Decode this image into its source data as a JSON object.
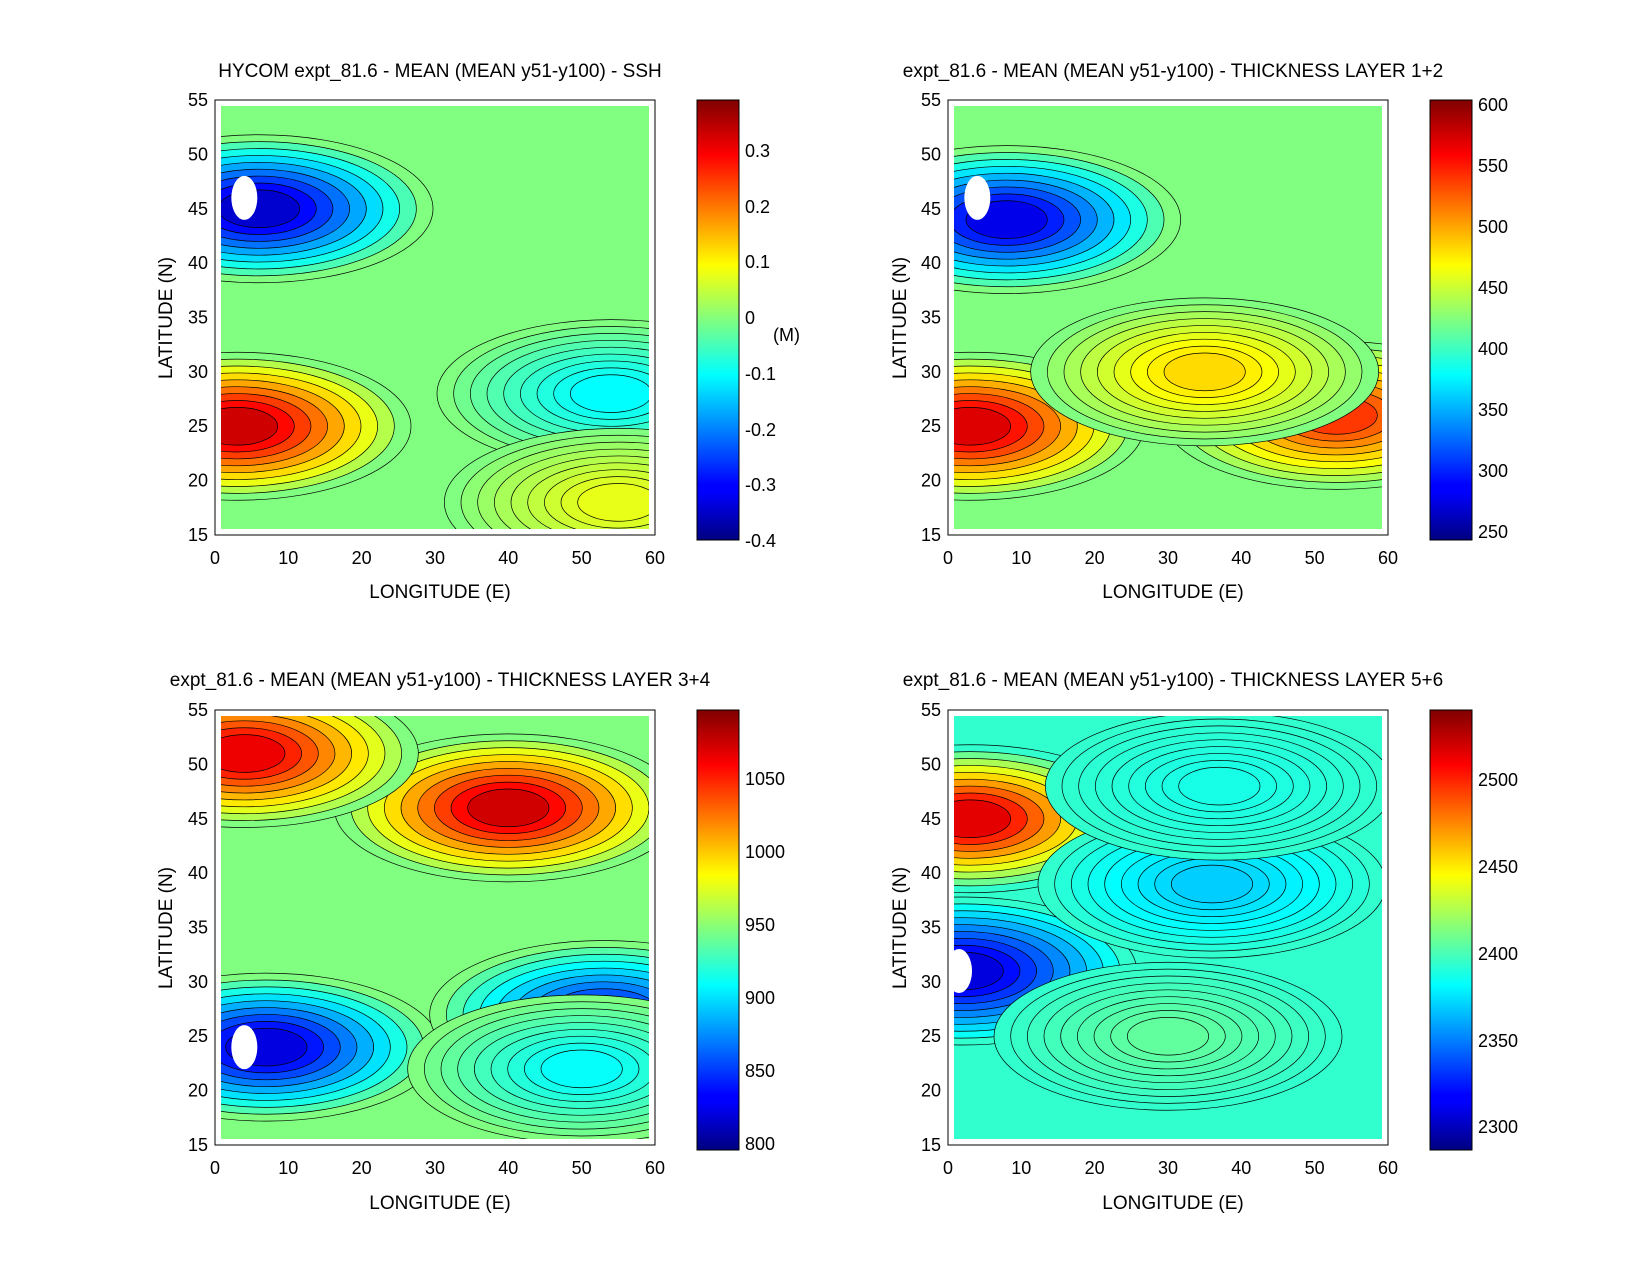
{
  "figure": {
    "panels": [
      {
        "title": "HYCOM expt_81.6 - MEAN (MEAN y51-y100) - SSH",
        "xlabel": "LONGITUDE (E)",
        "ylabel": "LATITUDE (N)",
        "xticks": [
          "0",
          "10",
          "20",
          "30",
          "40",
          "50",
          "60"
        ],
        "yticks": [
          "15",
          "20",
          "25",
          "30",
          "35",
          "40",
          "45",
          "50",
          "55"
        ],
        "colorbar": {
          "ticks": [
            "0.3",
            "0.2",
            "0.1",
            "0",
            "-0.1",
            "-0.2",
            "-0.3",
            "-0.4"
          ],
          "units": "(M)"
        }
      },
      {
        "title": "expt_81.6 - MEAN (MEAN y51-y100) - THICKNESS LAYER 1+2",
        "xlabel": "LONGITUDE (E)",
        "ylabel": "LATITUDE (N)",
        "xticks": [
          "0",
          "10",
          "20",
          "30",
          "40",
          "50",
          "60"
        ],
        "yticks": [
          "15",
          "20",
          "25",
          "30",
          "35",
          "40",
          "45",
          "50",
          "55"
        ],
        "colorbar": {
          "ticks": [
            "600",
            "550",
            "500",
            "450",
            "400",
            "350",
            "300",
            "250"
          ],
          "units": ""
        }
      },
      {
        "title": "expt_81.6 - MEAN (MEAN y51-y100) - THICKNESS LAYER 3+4",
        "xlabel": "LONGITUDE (E)",
        "ylabel": "LATITUDE (N)",
        "xticks": [
          "0",
          "10",
          "20",
          "30",
          "40",
          "50",
          "60"
        ],
        "yticks": [
          "15",
          "20",
          "25",
          "30",
          "35",
          "40",
          "45",
          "50",
          "55"
        ],
        "colorbar": {
          "ticks": [
            "1050",
            "1000",
            "950",
            "900",
            "850",
            "800"
          ],
          "units": ""
        }
      },
      {
        "title": "expt_81.6 - MEAN (MEAN y51-y100) - THICKNESS LAYER 5+6",
        "xlabel": "LONGITUDE (E)",
        "ylabel": "LATITUDE (N)",
        "xticks": [
          "0",
          "10",
          "20",
          "30",
          "40",
          "50",
          "60"
        ],
        "yticks": [
          "15",
          "20",
          "25",
          "30",
          "35",
          "40",
          "45",
          "50",
          "55"
        ],
        "colorbar": {
          "ticks": [
            "2500",
            "2450",
            "2400",
            "2350",
            "2300"
          ],
          "units": ""
        }
      }
    ]
  },
  "chart_data": [
    {
      "type": "heatmap",
      "title": "HYCOM expt_81.6 - MEAN (MEAN y51-y100) - SSH",
      "xlabel": "LONGITUDE (E)",
      "ylabel": "LATITUDE (N)",
      "xlim": [
        0,
        60
      ],
      "ylim": [
        15,
        55
      ],
      "colorbar": {
        "range": [
          -0.4,
          0.38
        ],
        "ticks": [
          0.3,
          0.2,
          0.1,
          0,
          -0.1,
          -0.2,
          -0.3,
          -0.4
        ],
        "units": "(M)"
      },
      "features": [
        {
          "kind": "min",
          "lon": 6,
          "lat": 45,
          "value": -0.38
        },
        {
          "kind": "max",
          "lon": 3,
          "lat": 25,
          "value": 0.36
        },
        {
          "kind": "trough",
          "lon": 54,
          "lat": 28,
          "value": -0.12
        },
        {
          "kind": "level",
          "lon": 55,
          "lat": 18,
          "value": 0.08
        }
      ],
      "masked_land": [
        {
          "lon": 4,
          "lat": 46
        }
      ]
    },
    {
      "type": "heatmap",
      "title": "expt_81.6 - MEAN (MEAN y51-y100) - THICKNESS LAYER 1+2",
      "xlabel": "LONGITUDE (E)",
      "ylabel": "LATITUDE (N)",
      "xlim": [
        0,
        60
      ],
      "ylim": [
        15,
        55
      ],
      "colorbar": {
        "range": [
          245,
          605
        ],
        "ticks": [
          600,
          550,
          500,
          450,
          400,
          350,
          300,
          250
        ],
        "units": ""
      },
      "features": [
        {
          "kind": "min",
          "lon": 8,
          "lat": 44,
          "value": 265
        },
        {
          "kind": "max",
          "lon": 3,
          "lat": 25,
          "value": 590
        },
        {
          "kind": "max",
          "lon": 53,
          "lat": 26,
          "value": 555
        },
        {
          "kind": "level",
          "lon": 35,
          "lat": 30,
          "value": 490
        }
      ],
      "masked_land": [
        {
          "lon": 4,
          "lat": 46
        }
      ]
    },
    {
      "type": "heatmap",
      "title": "expt_81.6 - MEAN (MEAN y51-y100) - THICKNESS LAYER 3+4",
      "xlabel": "LONGITUDE (E)",
      "ylabel": "LATITUDE (N)",
      "xlim": [
        0,
        60
      ],
      "ylim": [
        15,
        55
      ],
      "colorbar": {
        "range": [
          792,
          1088
        ],
        "ticks": [
          1050,
          1000,
          950,
          900,
          850,
          800
        ],
        "units": ""
      },
      "features": [
        {
          "kind": "max",
          "lon": 40,
          "lat": 46,
          "value": 1080
        },
        {
          "kind": "max",
          "lon": 4,
          "lat": 51,
          "value": 1070
        },
        {
          "kind": "min",
          "lon": 7,
          "lat": 24,
          "value": 805
        },
        {
          "kind": "min",
          "lon": 53,
          "lat": 27,
          "value": 830
        },
        {
          "kind": "level",
          "lon": 50,
          "lat": 22,
          "value": 900
        }
      ],
      "masked_land": [
        {
          "lon": 4,
          "lat": 24
        }
      ]
    },
    {
      "type": "heatmap",
      "title": "expt_81.6 - MEAN (MEAN y51-y100) - THICKNESS LAYER 5+6",
      "xlabel": "LONGITUDE (E)",
      "ylabel": "LATITUDE (N)",
      "xlim": [
        0,
        60
      ],
      "ylim": [
        15,
        55
      ],
      "colorbar": {
        "range": [
          2287,
          2535
        ],
        "ticks": [
          2500,
          2450,
          2400,
          2350,
          2300
        ],
        "units": ""
      },
      "features": [
        {
          "kind": "max",
          "lon": 3,
          "lat": 45,
          "value": 2525
        },
        {
          "kind": "min",
          "lon": 2,
          "lat": 31,
          "value": 2300
        },
        {
          "kind": "min",
          "lon": 36,
          "lat": 39,
          "value": 2365
        },
        {
          "kind": "min",
          "lon": 37,
          "lat": 48,
          "value": 2385
        },
        {
          "kind": "level",
          "lon": 30,
          "lat": 25,
          "value": 2405
        },
        {
          "kind": "background",
          "value": 2392
        }
      ],
      "masked_land": [
        {
          "lon": 1.5,
          "lat": 31
        }
      ]
    }
  ]
}
